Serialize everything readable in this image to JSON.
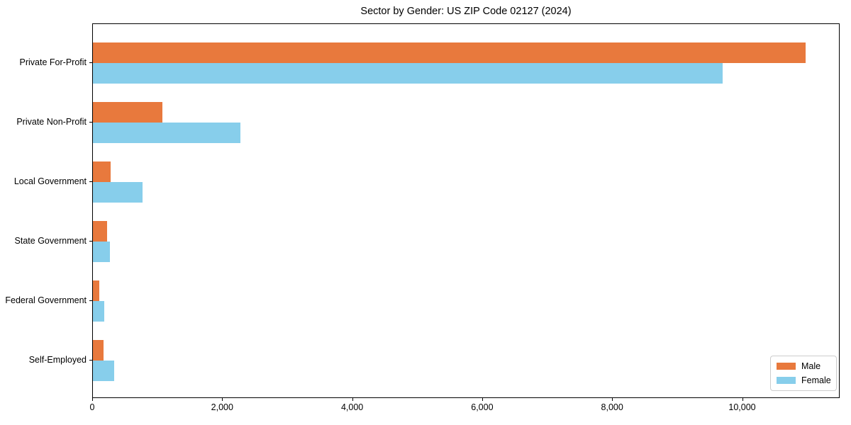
{
  "chart_data": {
    "type": "bar",
    "orientation": "horizontal",
    "title": "Sector by Gender: US ZIP Code 02127 (2024)",
    "categories": [
      "Private For-Profit",
      "Private Non-Profit",
      "Local Government",
      "State Government",
      "Federal Government",
      "Self-Employed"
    ],
    "series": [
      {
        "name": "Male",
        "color": "#e8793d",
        "values": [
          10970,
          1070,
          270,
          220,
          100,
          160
        ]
      },
      {
        "name": "Female",
        "color": "#87ceeb",
        "values": [
          9690,
          2270,
          760,
          265,
          170,
          330
        ]
      }
    ],
    "xlabel": "",
    "ylabel": "",
    "xlim": [
      0,
      11500
    ],
    "xticks": {
      "values": [
        0,
        2000,
        4000,
        6000,
        8000,
        10000
      ],
      "labels": [
        "0",
        "2,000",
        "4,000",
        "6,000",
        "8,000",
        "10,000"
      ]
    },
    "grid": false,
    "legend_position": "lower right",
    "background_color": "#ffffff",
    "spine_color": "#000000"
  }
}
